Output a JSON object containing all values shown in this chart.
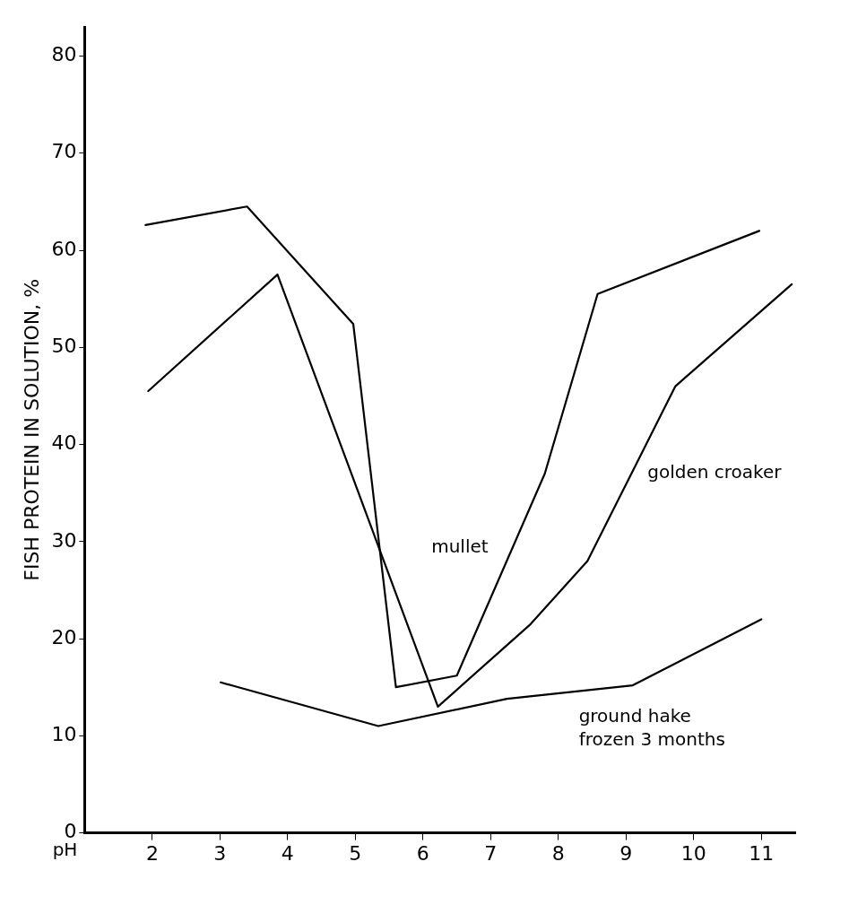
{
  "chart_data": {
    "type": "line",
    "xlabel": "pH",
    "ylabel": "FISH PROTEIN IN SOLUTION, %",
    "xlim": [
      1,
      11.5
    ],
    "xticks": [
      2,
      3,
      4,
      5,
      6,
      7,
      8,
      9,
      10,
      11
    ],
    "ylim": [
      0,
      83
    ],
    "yticks": [
      0,
      10,
      20,
      30,
      40,
      50,
      60,
      70,
      80
    ],
    "grid": false,
    "legend": false,
    "marker": "none",
    "line_style": "solid",
    "series": [
      {
        "name": "mullet",
        "color": "#000000",
        "x": [
          1.9,
          3.4,
          4.97,
          5.6,
          6.5,
          7.8,
          8.58,
          10.97
        ],
        "values": [
          62.6,
          64.5,
          52.4,
          15,
          16.2,
          37,
          55.5,
          62
        ]
      },
      {
        "name": "golden croaker",
        "color": "#000000",
        "x": [
          1.94,
          3.85,
          6.22,
          7.59,
          8.43,
          9.73,
          11.45
        ],
        "values": [
          45.5,
          57.5,
          13,
          21.5,
          28,
          46,
          56.5
        ]
      },
      {
        "name": "ground hake\nfrozen 3 months",
        "color": "#000000",
        "x": [
          3.01,
          5.34,
          7.24,
          9.1,
          11.0
        ],
        "values": [
          15.5,
          11,
          13.8,
          15.2,
          22
        ]
      }
    ]
  }
}
